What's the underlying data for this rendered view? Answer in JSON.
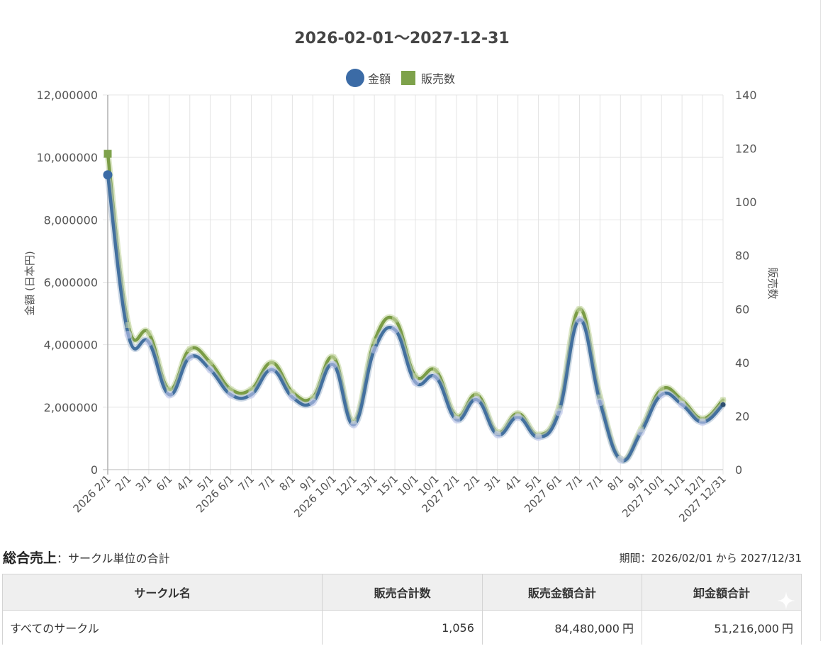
{
  "chart_data": {
    "type": "line",
    "title": "2026-02-01〜2027-12-31",
    "smooth": true,
    "grid": true,
    "legend_position": "top-center",
    "categories": [
      "2026 2/1",
      "2/1",
      "3/1",
      "6/1",
      "4/1",
      "5/1",
      "2026 6/1",
      "7/1",
      "7/1",
      "8/1",
      "9/1",
      "2026 10/1",
      "12/1",
      "13/1",
      "15/1",
      "10/1",
      "10/1",
      "2027 2/1",
      "2/1",
      "3/1",
      "4/1",
      "5/1",
      "2027 6/1",
      "7/1",
      "7/1",
      "8/1",
      "9/1",
      "2027 10/1",
      "11/1",
      "12/1",
      "2027 12/31"
    ],
    "series": [
      {
        "name": "金額",
        "axis": "left",
        "marker": "circle",
        "color": "#3b6ba6",
        "line_color": "#43709f",
        "outline_color": "#aebfd6",
        "values": [
          9440000,
          4320000,
          4080000,
          2400000,
          3600000,
          3200000,
          2400000,
          2400000,
          3200000,
          2320000,
          2160000,
          3360000,
          1440000,
          3840000,
          4480000,
          2800000,
          2960000,
          1600000,
          2240000,
          1120000,
          1680000,
          1040000,
          1840000,
          4800000,
          2160000,
          320000,
          1200000,
          2400000,
          2080000,
          1520000,
          2080000
        ]
      },
      {
        "name": "販売数",
        "axis": "right",
        "marker": "square",
        "color": "#7ea24b",
        "line_color": "#7a9c46",
        "outline_color": "#c4d7a2",
        "values": [
          118,
          54,
          51,
          30,
          45,
          40,
          30,
          30,
          40,
          29,
          27,
          42,
          18,
          48,
          56,
          35,
          37,
          20,
          28,
          14,
          21,
          13,
          23,
          60,
          27,
          4,
          15,
          30,
          26,
          19,
          26
        ]
      }
    ],
    "y_left": {
      "label": "金額 (日本円)",
      "range": [
        0,
        12000000
      ],
      "ticks": [
        0,
        2000000,
        4000000,
        6000000,
        8000000,
        10000000,
        12000000
      ],
      "tick_labels": [
        "0",
        "2,000000",
        "4,000000",
        "6,000000",
        "8,000000",
        "10,000000",
        "12,000000"
      ]
    },
    "y_right": {
      "label": "販売数",
      "range": [
        0,
        140
      ],
      "ticks": [
        0,
        20,
        40,
        60,
        80,
        100,
        120,
        140
      ],
      "tick_labels": [
        "0",
        "20",
        "40",
        "60",
        "80",
        "100",
        "120",
        "140"
      ]
    }
  },
  "summary": {
    "title": "総合売上",
    "subtitle": "：サークル単位の合計",
    "period": "期間：2026/02/01 から 2027/12/31"
  },
  "table": {
    "headers": [
      "サークル名",
      "販売合計数",
      "販売金額合計",
      "卸金額合計"
    ],
    "rows": [
      {
        "circle": "すべてのサークル",
        "count": "1,056",
        "sales": "84,480,000",
        "sales_unit": "円",
        "wholesale": "51,216,000",
        "wholesale_unit": "円"
      }
    ]
  }
}
